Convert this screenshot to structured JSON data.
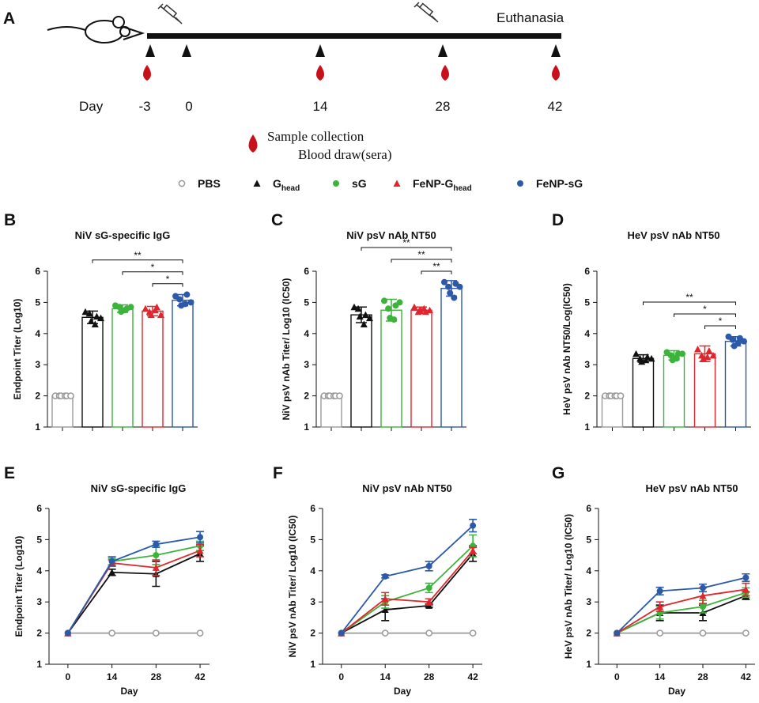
{
  "timeline": {
    "panel": "A",
    "day_label": "Day",
    "days": [
      "-3",
      "0",
      "14",
      "28",
      "42"
    ],
    "end_label": "Euthanasia",
    "sample_label": "Sample collection",
    "blood_label": "Blood draw(sera)"
  },
  "legend": [
    {
      "label": "PBS",
      "color": "#9a9a9a",
      "marker": "circle-open"
    },
    {
      "label": "G",
      "sub": "head",
      "color": "#111111",
      "marker": "triangle"
    },
    {
      "label": "sG",
      "color": "#3cb43c",
      "marker": "circle"
    },
    {
      "label": "FeNP-G",
      "sub": "head",
      "color": "#e0262c",
      "marker": "triangle"
    },
    {
      "label": "FeNP-sG",
      "color": "#2c5aa8",
      "marker": "circle"
    }
  ],
  "chart_data": [
    {
      "type": "bar",
      "panel": "B",
      "title": "NiV sG-specific IgG",
      "ylabel": "Endpoint  Titer (Log10)",
      "ylim": [
        1,
        6
      ],
      "yticks": [
        1,
        2,
        3,
        4,
        5,
        6
      ],
      "categories": [
        null,
        null,
        null,
        null,
        null
      ],
      "values": [
        2.0,
        4.52,
        4.8,
        4.72,
        5.07
      ],
      "errors": [
        0,
        0.2,
        0.12,
        0.15,
        0.18
      ],
      "points": [
        [
          2,
          2,
          2,
          2,
          2,
          2
        ],
        [
          4.7,
          4.65,
          4.4,
          4.3,
          4.55,
          4.5
        ],
        [
          4.9,
          4.85,
          4.7,
          4.75,
          4.8,
          4.85
        ],
        [
          4.8,
          4.7,
          4.6,
          4.75,
          4.85,
          4.6
        ],
        [
          5.2,
          5.1,
          4.9,
          4.95,
          5.25,
          5.0
        ]
      ],
      "annotations": [
        {
          "label": "**",
          "from": 1
        },
        {
          "label": "*",
          "from": 2
        },
        {
          "label": "*",
          "from": 3
        }
      ]
    },
    {
      "type": "bar",
      "panel": "C",
      "title": "NiV psV nAb NT50",
      "ylabel": "NiV psV nAb Titer/ Log10 (IC50)",
      "ylim": [
        1,
        6
      ],
      "yticks": [
        1,
        2,
        3,
        4,
        5,
        6
      ],
      "categories": [
        null,
        null,
        null,
        null,
        null
      ],
      "values": [
        2.0,
        4.6,
        4.75,
        4.75,
        5.45
      ],
      "errors": [
        0,
        0.25,
        0.35,
        0.1,
        0.25
      ],
      "points": [
        [
          2,
          2,
          2,
          2,
          2,
          2
        ],
        [
          4.85,
          4.8,
          4.55,
          4.3,
          4.6,
          4.5
        ],
        [
          5.05,
          4.8,
          4.5,
          4.45,
          4.9,
          5.0
        ],
        [
          4.85,
          4.7,
          4.75,
          4.8,
          4.7,
          4.75
        ],
        [
          5.65,
          5.5,
          5.3,
          5.15,
          5.6,
          5.5
        ]
      ],
      "annotations": [
        {
          "label": "**",
          "from": 1
        },
        {
          "label": "**",
          "from": 2
        },
        {
          "label": "**",
          "from": 3
        }
      ]
    },
    {
      "type": "bar",
      "panel": "D",
      "title": "HeV psV nAb NT50",
      "ylabel": "HeV psV nAb NT50/Log(IC50)",
      "ylim": [
        1,
        6
      ],
      "yticks": [
        1,
        2,
        3,
        4,
        5,
        6
      ],
      "categories": [
        null,
        null,
        null,
        null,
        null
      ],
      "values": [
        2.0,
        3.2,
        3.3,
        3.35,
        3.75
      ],
      "errors": [
        0,
        0.12,
        0.15,
        0.25,
        0.15
      ],
      "points": [
        [
          2,
          2,
          2,
          2,
          2,
          2
        ],
        [
          3.35,
          3.2,
          3.1,
          3.15,
          3.25,
          3.2
        ],
        [
          3.4,
          3.3,
          3.15,
          3.2,
          3.35,
          3.35
        ],
        [
          3.5,
          3.3,
          3.2,
          3.25,
          3.45,
          3.3
        ],
        [
          3.9,
          3.8,
          3.6,
          3.7,
          3.85,
          3.75
        ]
      ],
      "annotations": [
        {
          "label": "**",
          "from": 1
        },
        {
          "label": "*",
          "from": 2
        },
        {
          "label": "*",
          "from": 3
        }
      ]
    },
    {
      "type": "line",
      "panel": "E",
      "title": "NiV sG-specific IgG",
      "ylabel": "Endpoint  Titer (Log10)",
      "xlabel": "Day",
      "x": [
        0,
        14,
        28,
        42
      ],
      "xlim": [
        -6,
        45
      ],
      "xticks": [
        0,
        14,
        28,
        42
      ],
      "ylim": [
        1,
        6
      ],
      "yticks": [
        1,
        2,
        3,
        4,
        5,
        6
      ],
      "series": [
        {
          "values": [
            2,
            2,
            2,
            2
          ],
          "errors": [
            0,
            0,
            0,
            0
          ]
        },
        {
          "values": [
            2,
            3.95,
            3.9,
            4.55
          ],
          "errors": [
            0,
            0.1,
            0.4,
            0.25
          ]
        },
        {
          "values": [
            2,
            4.3,
            4.5,
            4.8
          ],
          "errors": [
            0,
            0.1,
            0.3,
            0.15
          ]
        },
        {
          "values": [
            2,
            4.25,
            4.1,
            4.65
          ],
          "errors": [
            0,
            0.1,
            0.25,
            0.2
          ]
        },
        {
          "values": [
            2,
            4.3,
            4.85,
            5.08
          ],
          "errors": [
            0,
            0.15,
            0.1,
            0.18
          ]
        }
      ]
    },
    {
      "type": "line",
      "panel": "F",
      "title": "NiV psV nAb NT50",
      "ylabel": "NiV psV nAb Titer/ Log10 (IC50)",
      "xlabel": "Day",
      "x": [
        0,
        14,
        28,
        42
      ],
      "xlim": [
        -6,
        45
      ],
      "xticks": [
        0,
        14,
        28,
        42
      ],
      "ylim": [
        1,
        6
      ],
      "yticks": [
        1,
        2,
        3,
        4,
        5,
        6
      ],
      "series": [
        {
          "values": [
            2,
            2,
            2,
            2
          ],
          "errors": [
            0,
            0,
            0,
            0
          ]
        },
        {
          "values": [
            2,
            2.75,
            2.88,
            4.55
          ],
          "errors": [
            0,
            0.35,
            0.05,
            0.25
          ]
        },
        {
          "values": [
            2,
            3.0,
            3.45,
            4.8
          ],
          "errors": [
            0,
            0.2,
            0.15,
            0.35
          ]
        },
        {
          "values": [
            2,
            3.1,
            3.0,
            4.65
          ],
          "errors": [
            0,
            0.2,
            0.1,
            0.1
          ]
        },
        {
          "values": [
            2,
            3.82,
            4.15,
            5.45
          ],
          "errors": [
            0,
            0.05,
            0.15,
            0.2
          ]
        }
      ]
    },
    {
      "type": "line",
      "panel": "G",
      "title": "HeV psV nAb NT50",
      "ylabel": "HeV psV nAb Titer/ Log10 (IC50)",
      "xlabel": "Day",
      "x": [
        0,
        14,
        28,
        42
      ],
      "xlim": [
        -6,
        45
      ],
      "xticks": [
        0,
        14,
        28,
        42
      ],
      "ylim": [
        1,
        6
      ],
      "yticks": [
        1,
        2,
        3,
        4,
        5,
        6
      ],
      "series": [
        {
          "values": [
            2,
            2,
            2,
            2
          ],
          "errors": [
            0,
            0,
            0,
            0
          ]
        },
        {
          "values": [
            2,
            2.65,
            2.65,
            3.2
          ],
          "errors": [
            0,
            0.25,
            0.25,
            0.12
          ]
        },
        {
          "values": [
            2,
            2.65,
            2.85,
            3.3
          ],
          "errors": [
            0,
            0.2,
            0.2,
            0.15
          ]
        },
        {
          "values": [
            2,
            2.85,
            3.2,
            3.4
          ],
          "errors": [
            0,
            0.15,
            0.25,
            0.2
          ]
        },
        {
          "values": [
            2,
            3.35,
            3.45,
            3.78
          ],
          "errors": [
            0,
            0.12,
            0.12,
            0.12
          ]
        }
      ]
    }
  ]
}
